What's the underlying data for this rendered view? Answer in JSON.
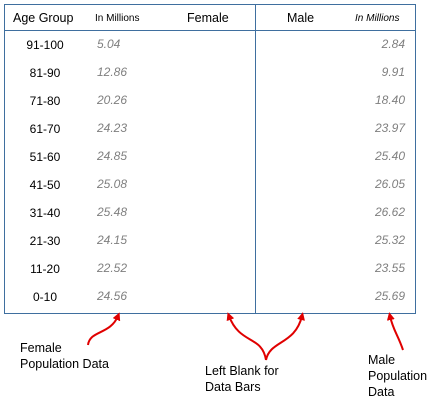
{
  "headers": {
    "age_group": "Age Group",
    "female_units": "In Millions",
    "female": "Female",
    "male": "Male",
    "male_units": "In Millions"
  },
  "rows": [
    {
      "age": "91-100",
      "female": "5.04",
      "male": "2.84"
    },
    {
      "age": "81-90",
      "female": "12.86",
      "male": "9.91"
    },
    {
      "age": "71-80",
      "female": "20.26",
      "male": "18.40"
    },
    {
      "age": "61-70",
      "female": "24.23",
      "male": "23.97"
    },
    {
      "age": "51-60",
      "female": "24.85",
      "male": "25.40"
    },
    {
      "age": "41-50",
      "female": "25.08",
      "male": "26.05"
    },
    {
      "age": "31-40",
      "female": "25.48",
      "male": "26.62"
    },
    {
      "age": "21-30",
      "female": "24.15",
      "male": "25.32"
    },
    {
      "age": "11-20",
      "female": "22.52",
      "male": "23.55"
    },
    {
      "age": "0-10",
      "female": "24.56",
      "male": "25.69"
    }
  ],
  "annotations": {
    "female_data": [
      "Female",
      "Population Data"
    ],
    "blank_bars": [
      "Left Blank for",
      "Data Bars"
    ],
    "male_data": [
      "Male",
      "Population",
      "Data"
    ]
  },
  "colors": {
    "border": "#3f6f9f",
    "value_text": "#7f7f7f",
    "arrow": "#e00000"
  }
}
